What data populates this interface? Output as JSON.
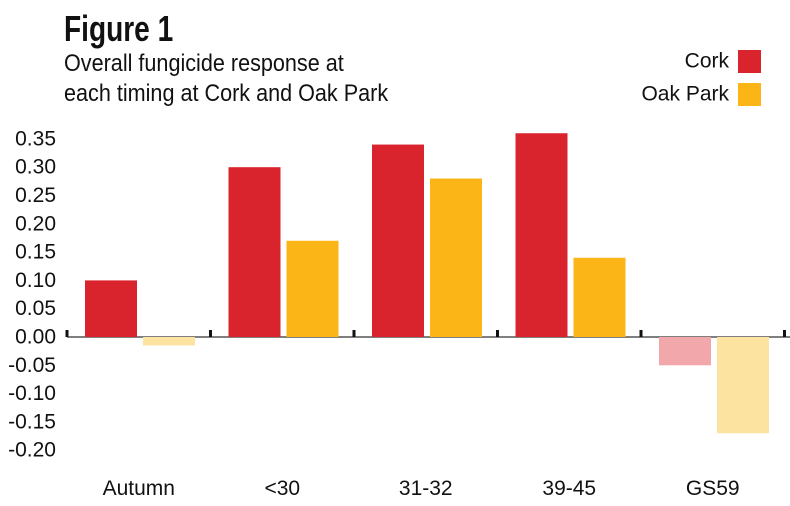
{
  "chart_data": {
    "type": "bar",
    "title": "Figure 1",
    "subtitle": [
      "Overall fungicide response at",
      "each timing at Cork and Oak Park"
    ],
    "categories": [
      "Autumn",
      "<30",
      "31-32",
      "39-45",
      "GS59"
    ],
    "series": [
      {
        "name": "Cork",
        "color": "#d9232d",
        "negColor": "#f2a7ab",
        "values": [
          0.1,
          0.3,
          0.34,
          0.36,
          -0.05
        ]
      },
      {
        "name": "Oak Park",
        "color": "#fbb516",
        "negColor": "#fde3a0",
        "values": [
          -0.015,
          0.17,
          0.28,
          0.14,
          -0.17
        ]
      }
    ],
    "yticks": [
      "0.35",
      "0.30",
      "0.25",
      "0.20",
      "0.15",
      "0.10",
      "0.05",
      "0.00",
      "-0.05",
      "-0.10",
      "-0.15",
      "-0.20"
    ],
    "ylim": [
      -0.2,
      0.35
    ],
    "xlabel": "",
    "ylabel": "",
    "legend": "top-right",
    "grid": false
  }
}
